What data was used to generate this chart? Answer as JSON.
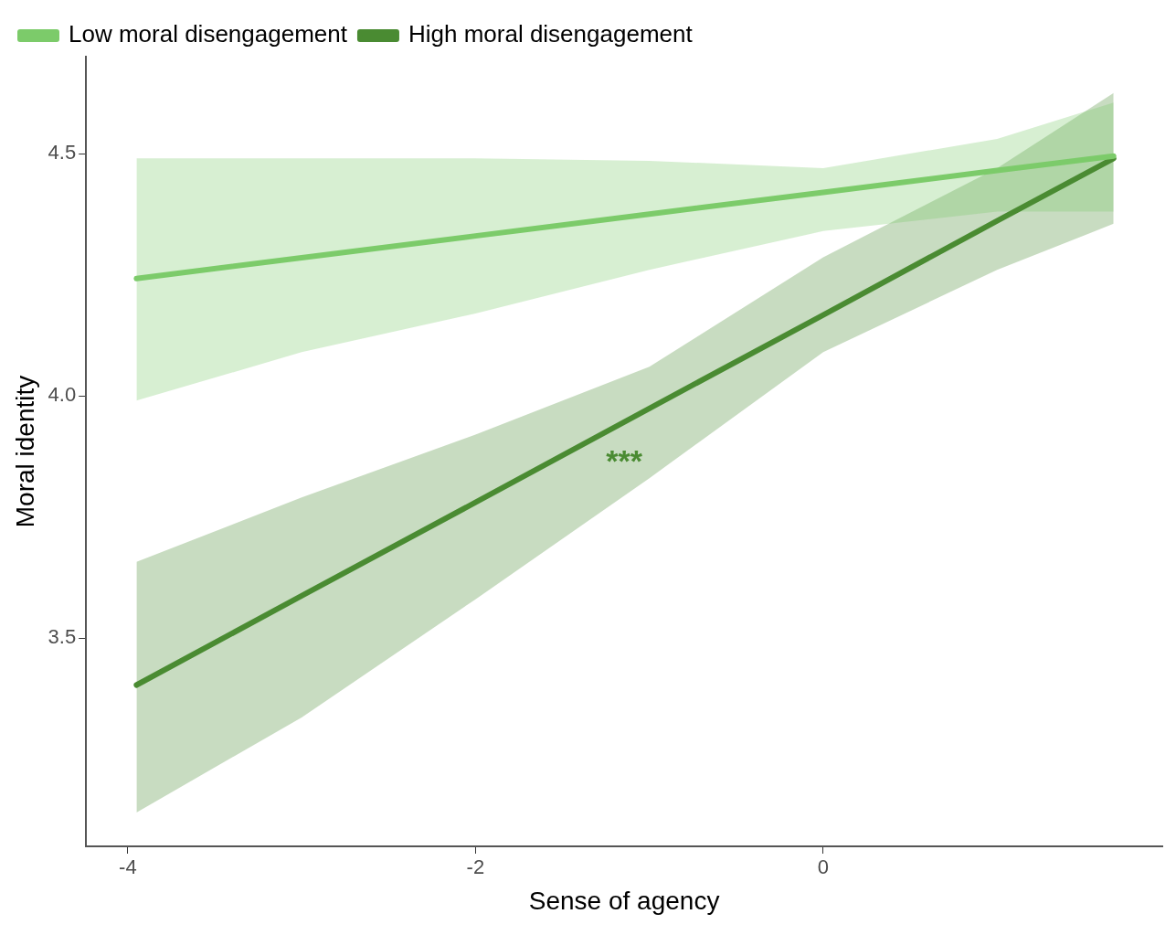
{
  "chart_data": {
    "type": "line",
    "xlabel": "Sense of agency",
    "ylabel": "Moral identity",
    "x": [
      -3.95,
      -3,
      -2,
      -1,
      0,
      1,
      1.67
    ],
    "series": [
      {
        "name": "Low moral disengagement",
        "color": "#7ccb6a",
        "values": [
          4.242,
          4.285,
          4.33,
          4.375,
          4.42,
          4.465,
          4.495
        ],
        "lower": [
          3.99,
          4.09,
          4.17,
          4.26,
          4.34,
          4.38,
          4.38
        ],
        "upper": [
          4.49,
          4.49,
          4.49,
          4.485,
          4.47,
          4.53,
          4.605
        ]
      },
      {
        "name": "High moral disengagement",
        "color": "#4a8b32",
        "values": [
          3.403,
          3.587,
          3.78,
          3.974,
          4.167,
          4.361,
          4.49
        ],
        "lower": [
          3.14,
          3.336,
          3.58,
          3.83,
          4.09,
          4.26,
          4.355
        ],
        "upper": [
          3.657,
          3.79,
          3.92,
          4.06,
          4.286,
          4.47,
          4.625
        ]
      }
    ],
    "annotations": [
      "***"
    ],
    "xlim": [
      -4.24,
      1.95
    ],
    "ylim": [
      3.07,
      4.7
    ],
    "xticks": [
      -4,
      -2,
      0
    ],
    "yticks": [
      {
        "value": 3.5,
        "label": "3.5"
      },
      {
        "value": 4,
        "label": "4.0"
      },
      {
        "value": 4.5,
        "label": "4.5"
      }
    ],
    "grid": false,
    "legend": "top left",
    "line_style": "solid",
    "marker": "none"
  }
}
